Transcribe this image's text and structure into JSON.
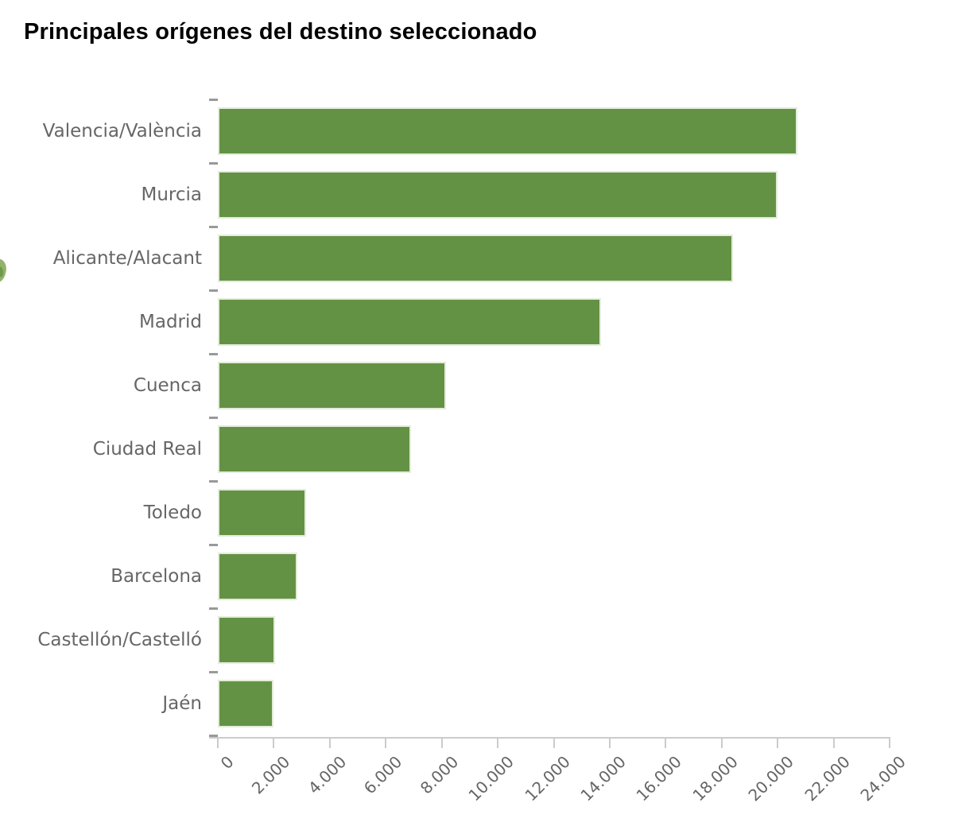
{
  "page": {
    "title": "Principales orígenes del destino seleccionado"
  },
  "colors": {
    "bar_fill": "#649245",
    "bar_border": "#e4ecda",
    "axis": "#cccccc",
    "category_tick": "#999999",
    "label_text": "#666666",
    "title_text": "#000000",
    "artifact_light": "#93b36d",
    "artifact_dark": "#6f9a49"
  },
  "chart_data": {
    "type": "bar",
    "orientation": "horizontal",
    "title": "Principales orígenes del destino seleccionado",
    "categories": [
      "Valencia/València",
      "Murcia",
      "Alicante/Alacant",
      "Madrid",
      "Cuenca",
      "Ciudad Real",
      "Toledo",
      "Barcelona",
      "Castellón/Castelló",
      "Jaén"
    ],
    "values": [
      20700,
      20000,
      18400,
      13700,
      8150,
      6900,
      3150,
      2850,
      2050,
      2000
    ],
    "xlabel": "",
    "ylabel": "",
    "xlim": [
      0,
      24000
    ],
    "x_tick_interval": 2000,
    "x_ticks": [
      0,
      2000,
      4000,
      6000,
      8000,
      10000,
      12000,
      14000,
      16000,
      18000,
      20000,
      22000,
      24000
    ],
    "x_tick_labels": [
      "0",
      "2.000",
      "4.000",
      "6.000",
      "8.000",
      "10.000",
      "12.000",
      "14.000",
      "16.000",
      "18.000",
      "20.000",
      "22.000",
      "24.000"
    ],
    "legend": "none",
    "grid": false,
    "bar_color": "#649245"
  }
}
